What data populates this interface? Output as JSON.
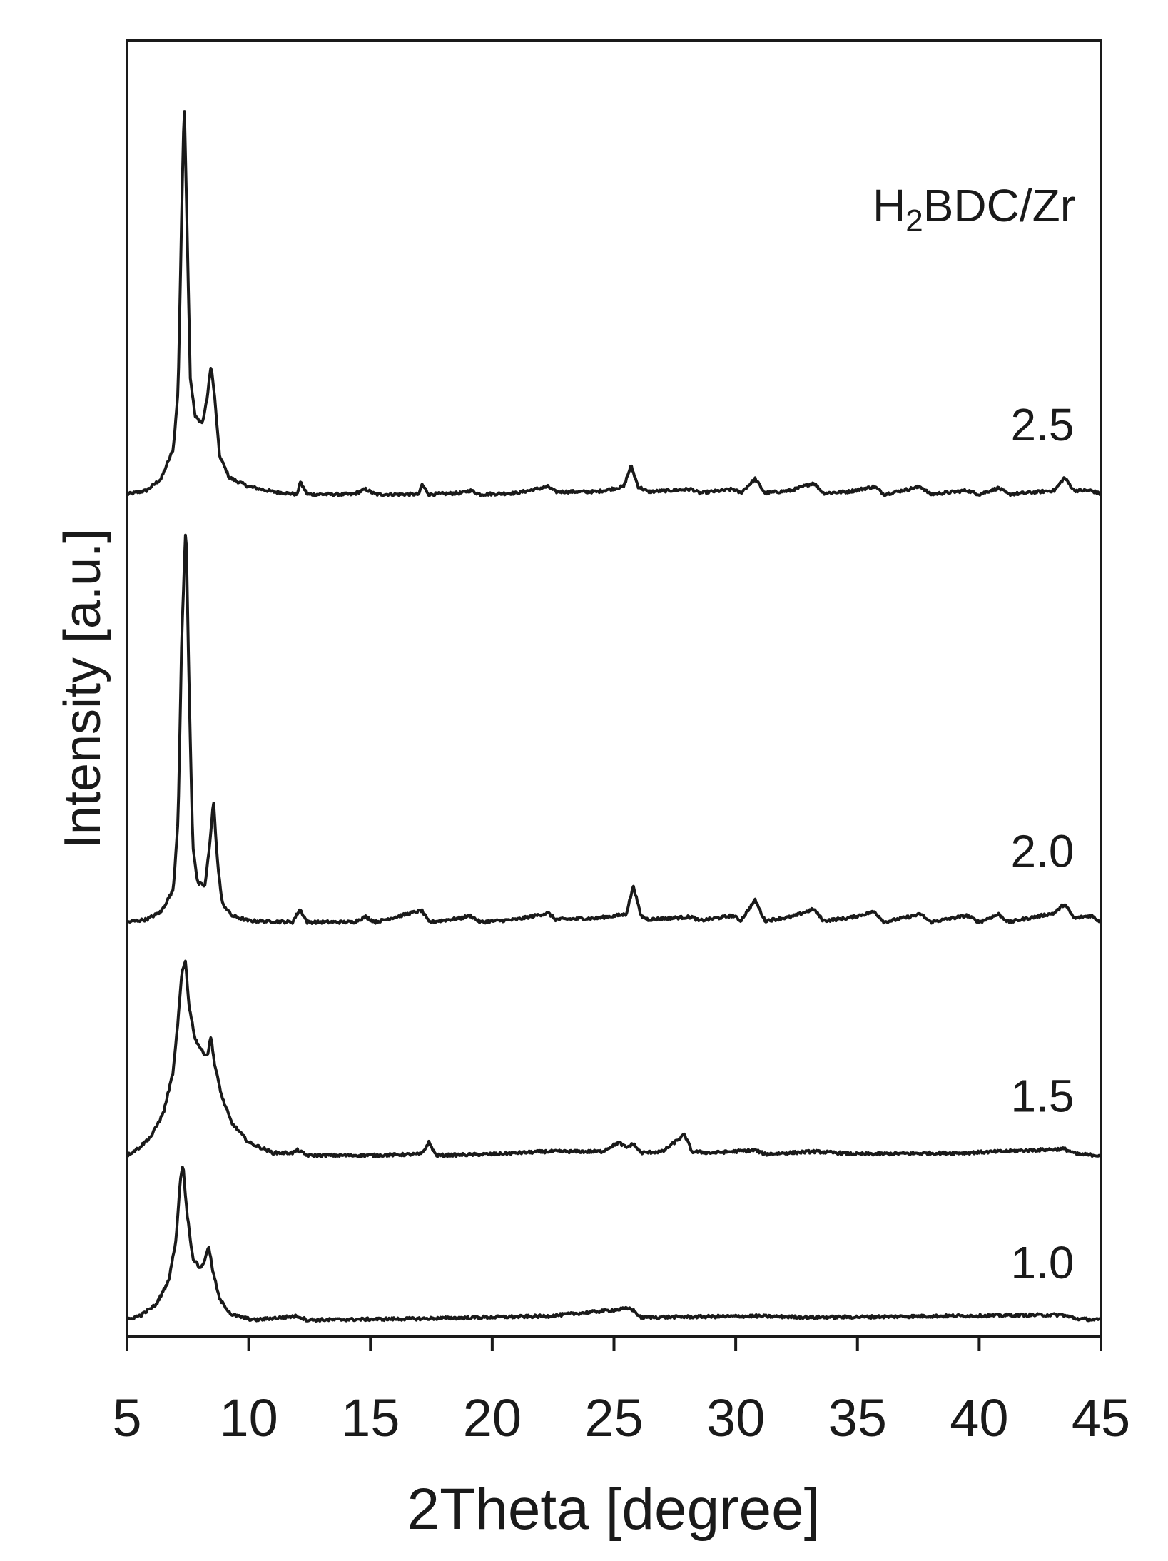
{
  "chart_data": {
    "type": "line",
    "title": "",
    "xlabel": "2Theta [degree]",
    "ylabel": "Intensity [a.u.]",
    "xlim": [
      5,
      45
    ],
    "ylim": [
      0,
      100
    ],
    "x_ticks": [
      "5",
      "10",
      "15",
      "20",
      "25",
      "30",
      "35",
      "40",
      "45"
    ],
    "y_ticks": [],
    "grid": false,
    "stacked_offset": true,
    "legend_title": {
      "main": "H",
      "sub": "2",
      "rest": "BDC/Zr"
    },
    "line_color": "#1a1a1a",
    "series": [
      {
        "name": "2.5",
        "offset": 65.0,
        "values": [
          [
            5.0,
            0.0
          ],
          [
            5.8,
            0.3
          ],
          [
            6.4,
            1.2
          ],
          [
            6.9,
            3.5
          ],
          [
            7.1,
            8.0
          ],
          [
            7.25,
            22.0
          ],
          [
            7.35,
            30.5
          ],
          [
            7.45,
            22.0
          ],
          [
            7.6,
            9.0
          ],
          [
            7.8,
            6.0
          ],
          [
            8.1,
            5.5
          ],
          [
            8.3,
            7.5
          ],
          [
            8.45,
            10.0
          ],
          [
            8.6,
            7.5
          ],
          [
            8.8,
            3.0
          ],
          [
            9.2,
            1.3
          ],
          [
            10.0,
            0.6
          ],
          [
            11.0,
            0.2
          ],
          [
            12.0,
            0.0
          ],
          [
            12.1,
            1.0
          ],
          [
            12.4,
            0.0
          ],
          [
            14.3,
            0.0
          ],
          [
            14.8,
            0.4
          ],
          [
            15.2,
            0.0
          ],
          [
            17.0,
            0.0
          ],
          [
            17.1,
            0.8
          ],
          [
            17.4,
            0.0
          ],
          [
            18.7,
            0.1
          ],
          [
            19.1,
            0.3
          ],
          [
            19.5,
            0.0
          ],
          [
            21.0,
            0.1
          ],
          [
            22.3,
            0.6
          ],
          [
            22.6,
            0.2
          ],
          [
            24.3,
            0.2
          ],
          [
            25.4,
            0.6
          ],
          [
            25.7,
            2.2
          ],
          [
            26.0,
            0.6
          ],
          [
            26.4,
            0.2
          ],
          [
            28.2,
            0.4
          ],
          [
            28.5,
            0.1
          ],
          [
            29.9,
            0.4
          ],
          [
            30.2,
            0.1
          ],
          [
            30.8,
            1.2
          ],
          [
            31.2,
            0.1
          ],
          [
            32.3,
            0.3
          ],
          [
            33.2,
            0.9
          ],
          [
            33.6,
            0.1
          ],
          [
            34.6,
            0.2
          ],
          [
            35.7,
            0.6
          ],
          [
            36.1,
            0.0
          ],
          [
            37.6,
            0.6
          ],
          [
            38.0,
            0.0
          ],
          [
            39.5,
            0.3
          ],
          [
            40.0,
            0.0
          ],
          [
            40.8,
            0.5
          ],
          [
            41.2,
            0.0
          ],
          [
            43.1,
            0.3
          ],
          [
            43.5,
            1.3
          ],
          [
            43.9,
            0.3
          ],
          [
            44.6,
            0.3
          ],
          [
            45.0,
            0.0
          ]
        ]
      },
      {
        "name": "2.0",
        "offset": 32.0,
        "values": [
          [
            5.0,
            0.0
          ],
          [
            5.8,
            0.2
          ],
          [
            6.4,
            0.8
          ],
          [
            6.9,
            2.5
          ],
          [
            7.1,
            8.0
          ],
          [
            7.25,
            22.0
          ],
          [
            7.42,
            31.0
          ],
          [
            7.55,
            18.0
          ],
          [
            7.7,
            6.0
          ],
          [
            7.9,
            3.0
          ],
          [
            8.2,
            2.8
          ],
          [
            8.4,
            6.0
          ],
          [
            8.55,
            9.5
          ],
          [
            8.7,
            5.0
          ],
          [
            8.9,
            1.5
          ],
          [
            9.3,
            0.5
          ],
          [
            10.0,
            0.1
          ],
          [
            11.8,
            0.0
          ],
          [
            12.1,
            1.0
          ],
          [
            12.4,
            0.0
          ],
          [
            14.3,
            0.0
          ],
          [
            14.8,
            0.4
          ],
          [
            15.2,
            0.0
          ],
          [
            17.1,
            0.9
          ],
          [
            17.4,
            0.0
          ],
          [
            18.7,
            0.3
          ],
          [
            19.1,
            0.5
          ],
          [
            19.5,
            0.0
          ],
          [
            21.0,
            0.2
          ],
          [
            22.3,
            0.7
          ],
          [
            22.6,
            0.2
          ],
          [
            24.3,
            0.3
          ],
          [
            25.5,
            0.6
          ],
          [
            25.8,
            2.8
          ],
          [
            26.1,
            0.5
          ],
          [
            26.4,
            0.2
          ],
          [
            28.2,
            0.4
          ],
          [
            28.5,
            0.1
          ],
          [
            29.9,
            0.5
          ],
          [
            30.2,
            0.1
          ],
          [
            30.8,
            1.7
          ],
          [
            31.2,
            0.1
          ],
          [
            32.3,
            0.4
          ],
          [
            33.2,
            1.0
          ],
          [
            33.6,
            0.1
          ],
          [
            34.6,
            0.3
          ],
          [
            35.7,
            0.8
          ],
          [
            36.1,
            0.0
          ],
          [
            37.6,
            0.6
          ],
          [
            38.0,
            0.0
          ],
          [
            39.5,
            0.5
          ],
          [
            40.0,
            0.0
          ],
          [
            40.8,
            0.6
          ],
          [
            41.2,
            0.0
          ],
          [
            43.1,
            0.7
          ],
          [
            43.5,
            1.4
          ],
          [
            43.9,
            0.3
          ],
          [
            44.6,
            0.5
          ],
          [
            45.0,
            0.0
          ]
        ]
      },
      {
        "name": "1.5",
        "offset": 14.0,
        "values": [
          [
            5.0,
            0.0
          ],
          [
            5.5,
            0.6
          ],
          [
            6.0,
            1.5
          ],
          [
            6.5,
            3.3
          ],
          [
            6.9,
            6.5
          ],
          [
            7.1,
            10.5
          ],
          [
            7.25,
            14.0
          ],
          [
            7.4,
            15.0
          ],
          [
            7.55,
            11.5
          ],
          [
            7.8,
            9.0
          ],
          [
            8.1,
            8.0
          ],
          [
            8.3,
            7.7
          ],
          [
            8.45,
            9.2
          ],
          [
            8.6,
            7.0
          ],
          [
            8.9,
            4.5
          ],
          [
            9.3,
            2.5
          ],
          [
            10.0,
            1.0
          ],
          [
            11.0,
            0.2
          ],
          [
            11.8,
            0.2
          ],
          [
            12.0,
            0.4
          ],
          [
            12.4,
            0.0
          ],
          [
            15.0,
            0.0
          ],
          [
            17.1,
            0.1
          ],
          [
            17.4,
            1.0
          ],
          [
            17.7,
            0.0
          ],
          [
            20.0,
            0.1
          ],
          [
            22.2,
            0.3
          ],
          [
            24.5,
            0.3
          ],
          [
            25.2,
            1.0
          ],
          [
            25.5,
            0.6
          ],
          [
            25.8,
            0.9
          ],
          [
            26.1,
            0.2
          ],
          [
            27.0,
            0.3
          ],
          [
            27.9,
            1.6
          ],
          [
            28.2,
            0.3
          ],
          [
            29.0,
            0.2
          ],
          [
            30.8,
            0.4
          ],
          [
            31.2,
            0.1
          ],
          [
            33.2,
            0.3
          ],
          [
            35.0,
            0.1
          ],
          [
            39.5,
            0.2
          ],
          [
            43.5,
            0.5
          ],
          [
            44.0,
            0.1
          ],
          [
            45.0,
            0.0
          ]
        ]
      },
      {
        "name": "1.0",
        "offset": 1.3,
        "values": [
          [
            5.0,
            0.0
          ],
          [
            5.6,
            0.4
          ],
          [
            6.2,
            1.2
          ],
          [
            6.7,
            3.0
          ],
          [
            7.0,
            6.0
          ],
          [
            7.2,
            11.0
          ],
          [
            7.3,
            12.0
          ],
          [
            7.45,
            8.5
          ],
          [
            7.7,
            4.8
          ],
          [
            8.0,
            4.0
          ],
          [
            8.2,
            4.6
          ],
          [
            8.35,
            5.8
          ],
          [
            8.5,
            4.0
          ],
          [
            8.8,
            1.6
          ],
          [
            9.3,
            0.4
          ],
          [
            10.2,
            0.0
          ],
          [
            12.0,
            0.3
          ],
          [
            12.4,
            0.0
          ],
          [
            17.0,
            0.1
          ],
          [
            22.3,
            0.3
          ],
          [
            25.7,
            0.9
          ],
          [
            26.1,
            0.2
          ],
          [
            30.8,
            0.3
          ],
          [
            33.2,
            0.2
          ],
          [
            43.4,
            0.4
          ],
          [
            44.0,
            0.1
          ],
          [
            45.0,
            0.0
          ]
        ]
      }
    ]
  }
}
